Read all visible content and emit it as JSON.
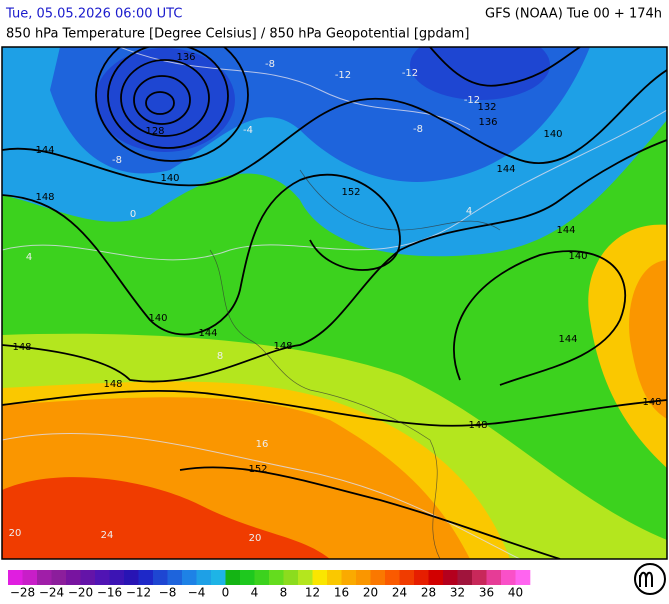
{
  "header": {
    "date": "Tue, 05.05.2026 06:00 UTC",
    "model": "GFS (NOAA) Tue 00 + 174h",
    "title": "850 hPa Temperature [Degree Celsius] / 850 hPa Geopotential [gpdam]"
  },
  "map": {
    "contour_labels": [
      "136",
      "128",
      "140",
      "144",
      "148",
      "140",
      "144",
      "148",
      "148",
      "148",
      "152",
      "152",
      "144",
      "140",
      "136",
      "132",
      "144",
      "140",
      "144",
      "148",
      "148",
      "-8",
      "-12",
      "-12",
      "-12",
      "-8",
      "-8",
      "-4",
      "0",
      "4",
      "4",
      "8",
      "16",
      "20",
      "24",
      "20"
    ]
  },
  "colorbar": {
    "range": [
      -30,
      42
    ],
    "ticks": [
      {
        "value": -28,
        "label": "−28"
      },
      {
        "value": -24,
        "label": "−24"
      },
      {
        "value": -20,
        "label": "−20"
      },
      {
        "value": -16,
        "label": "−16"
      },
      {
        "value": -12,
        "label": "−12"
      },
      {
        "value": -8,
        "label": "−8"
      },
      {
        "value": -4,
        "label": "−4"
      },
      0,
      4,
      8,
      12,
      16,
      20,
      24,
      28,
      32,
      36,
      40
    ],
    "colors": [
      "#e01ee0",
      "#c81ec8",
      "#a01ea8",
      "#8c1e9c",
      "#7814a0",
      "#6414a8",
      "#5014b4",
      "#3c14b4",
      "#2814b4",
      "#1e28c8",
      "#1e46d2",
      "#1e64dc",
      "#1e82e6",
      "#1ea0e6",
      "#1eb4e6",
      "#14b414",
      "#1ec81e",
      "#3cd21e",
      "#64dc1e",
      "#8cdc1e",
      "#b4e61e",
      "#fae600",
      "#fac800",
      "#faaa00",
      "#fa9600",
      "#fa7800",
      "#fa5a00",
      "#f03c00",
      "#e61e00",
      "#d20000",
      "#b4001e",
      "#a0143c",
      "#c8285a",
      "#e63c96",
      "#fa50c8",
      "#ff64f0"
    ]
  }
}
